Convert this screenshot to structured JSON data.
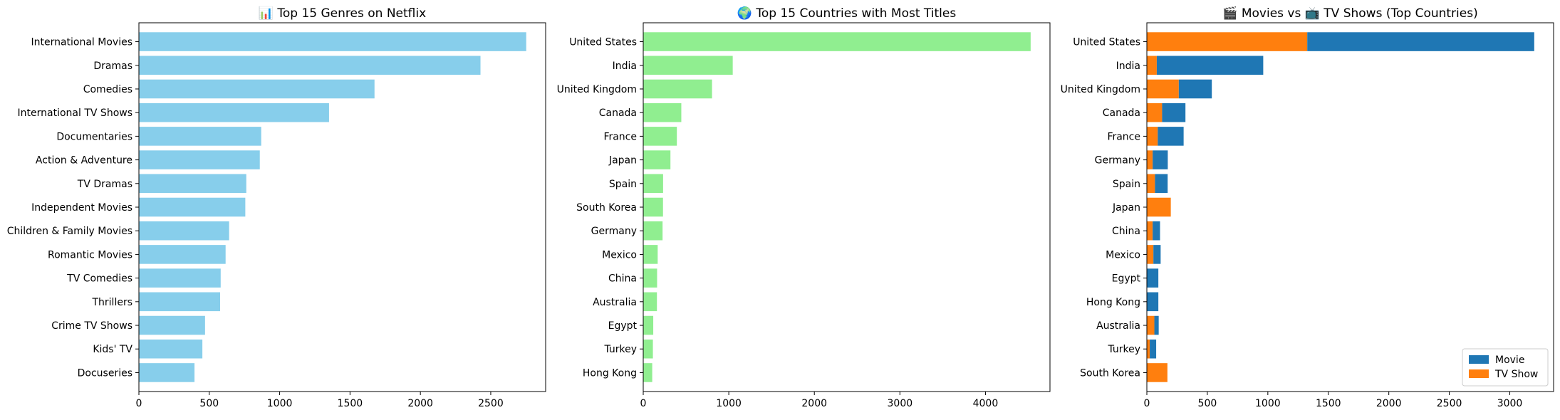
{
  "chart_data": [
    {
      "type": "bar",
      "orientation": "horizontal",
      "title": "📊 Top 15 Genres on Netflix",
      "categories": [
        "International Movies",
        "Dramas",
        "Comedies",
        "International TV Shows",
        "Documentaries",
        "Action & Adventure",
        "TV Dramas",
        "Independent Movies",
        "Children & Family Movies",
        "Romantic Movies",
        "TV Comedies",
        "Thrillers",
        "Crime TV Shows",
        "Kids' TV",
        "Docuseries"
      ],
      "values": [
        2752,
        2427,
        1674,
        1351,
        869,
        859,
        763,
        756,
        641,
        616,
        581,
        577,
        470,
        451,
        395
      ],
      "color": "#87ceeb",
      "xlim": [
        0,
        2890
      ],
      "xticks": [
        0,
        500,
        1000,
        1500,
        2000,
        2500
      ],
      "xlabel": "",
      "ylabel": ""
    },
    {
      "type": "bar",
      "orientation": "horizontal",
      "title": "🌍 Top 15 Countries with Most Titles",
      "categories": [
        "United States",
        "India",
        "United Kingdom",
        "Canada",
        "France",
        "Japan",
        "Spain",
        "South Korea",
        "Germany",
        "Mexico",
        "China",
        "Australia",
        "Egypt",
        "Turkey",
        "Hong Kong"
      ],
      "values": [
        4528,
        1046,
        804,
        445,
        393,
        318,
        232,
        231,
        226,
        169,
        162,
        160,
        117,
        113,
        105
      ],
      "color": "#90ee90",
      "xlim": [
        0,
        4754
      ],
      "xticks": [
        0,
        1000,
        2000,
        3000,
        4000
      ],
      "xlabel": "",
      "ylabel": ""
    },
    {
      "type": "bar",
      "orientation": "horizontal",
      "stacked": true,
      "title": "🎬 Movies vs 📺 TV Shows (Top Countries)",
      "categories": [
        "United States",
        "India",
        "United Kingdom",
        "Canada",
        "France",
        "Germany",
        "Spain",
        "Japan",
        "China",
        "Mexico",
        "Egypt",
        "Hong Kong",
        "Australia",
        "Turkey",
        "South Korea"
      ],
      "series": [
        {
          "name": "Movie",
          "color": "#1f77b4",
          "values": [
            1876,
            880,
            273,
            193,
            214,
            125,
            105,
            0,
            61,
            60,
            95,
            95,
            36,
            53,
            0
          ]
        },
        {
          "name": "TV Show",
          "color": "#ff7f0e",
          "values": [
            1326,
            82,
            264,
            126,
            90,
            48,
            67,
            198,
            48,
            54,
            0,
            0,
            62,
            24,
            170
          ]
        }
      ],
      "xlim": [
        0,
        3362
      ],
      "xticks": [
        0,
        500,
        1000,
        1500,
        2000,
        2500,
        3000
      ],
      "legend": "lower-right",
      "xlabel": "",
      "ylabel": ""
    }
  ]
}
